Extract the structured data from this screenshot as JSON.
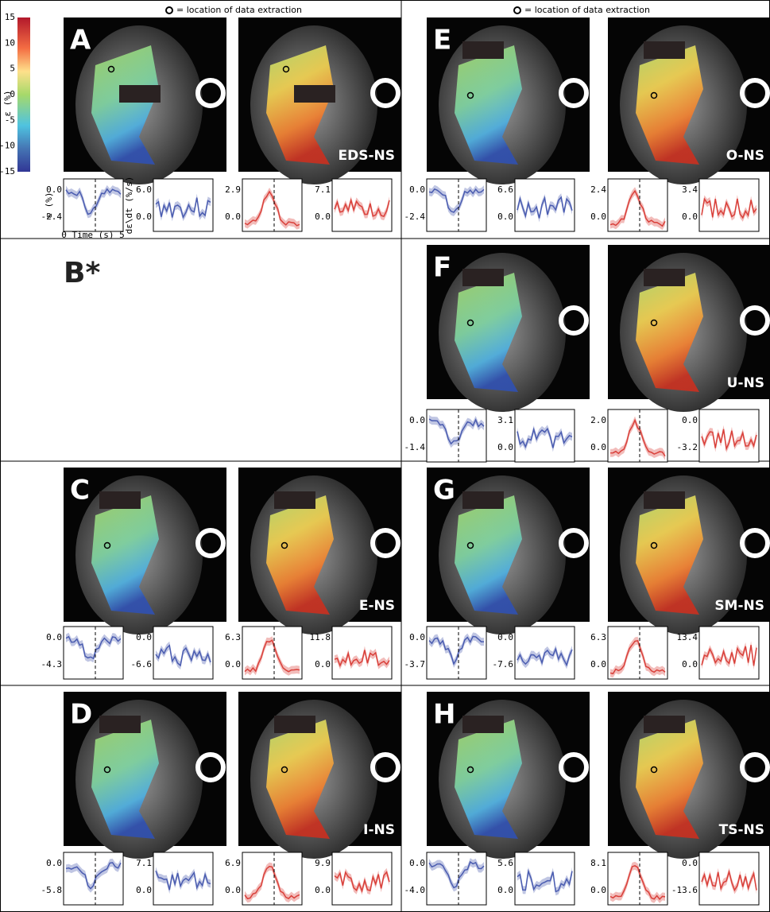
{
  "header": {
    "note_left": "= location of data extraction",
    "note_right": "= location of data extraction"
  },
  "colorbar": {
    "label": "ε (%)",
    "ticks": [
      "15",
      "10",
      "5",
      "0",
      "-5",
      "-10",
      "-15"
    ]
  },
  "axis_labels": {
    "strain": "ε (%)",
    "time": "0 Time (s) 5",
    "rate": "dε\\dt (%/s)"
  },
  "panels": [
    {
      "letter": "A",
      "label": "EDS-NS",
      "plots": [
        [
          "0.0",
          "-2.4"
        ],
        [
          "6.0",
          "0.0"
        ],
        [
          "2.9",
          "0.0"
        ],
        [
          "7.1",
          "0.0"
        ]
      ]
    },
    {
      "letter": "E",
      "label": "O-NS",
      "plots": [
        [
          "0.0",
          "-2.4"
        ],
        [
          "6.6",
          "0.0"
        ],
        [
          "2.4",
          "0.0"
        ],
        [
          "3.4",
          "0.0"
        ]
      ]
    },
    {
      "letter": "B*"
    },
    {
      "letter": "F",
      "label": "U-NS",
      "plots": [
        [
          "0.0",
          "-1.4"
        ],
        [
          "3.1",
          "0.0"
        ],
        [
          "2.0",
          "0.0"
        ],
        [
          "0.0",
          "-3.2"
        ]
      ]
    },
    {
      "letter": "C",
      "label": "E-NS",
      "plots": [
        [
          "0.0",
          "-4.3"
        ],
        [
          "0.0",
          "-6.6"
        ],
        [
          "6.3",
          "0.0"
        ],
        [
          "11.8",
          "0.0"
        ]
      ]
    },
    {
      "letter": "G",
      "label": "SM-NS",
      "plots": [
        [
          "0.0",
          "-3.7"
        ],
        [
          "0.0",
          "-7.6"
        ],
        [
          "6.3",
          "0.0"
        ],
        [
          "13.4",
          "0.0"
        ]
      ]
    },
    {
      "letter": "D",
      "label": "I-NS",
      "plots": [
        [
          "0.0",
          "-5.8"
        ],
        [
          "7.1",
          "0.0"
        ],
        [
          "6.9",
          "0.0"
        ],
        [
          "9.9",
          "0.0"
        ]
      ]
    },
    {
      "letter": "H",
      "label": "TS-NS",
      "plots": [
        [
          "0.0",
          "-4.0"
        ],
        [
          "5.6",
          "0.0"
        ],
        [
          "8.1",
          "0.0"
        ],
        [
          "0.0",
          "-13.6"
        ]
      ]
    }
  ]
}
